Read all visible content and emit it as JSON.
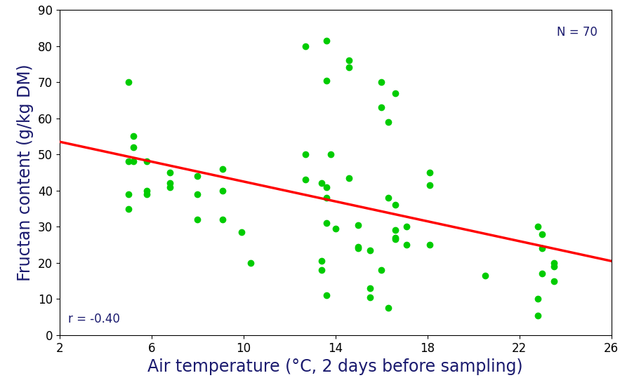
{
  "chart_data": {
    "type": "scatter",
    "x_label": "Air temperature (°C, 2 days before sampling)",
    "y_label": "Fructan content (g/kg DM)",
    "annotations": [
      "N = 70",
      "r = -0.40"
    ],
    "xlim": [
      2,
      26
    ],
    "xticks": [
      2,
      6,
      10,
      14,
      18,
      22,
      26
    ],
    "ylim": [
      0,
      90
    ],
    "yticks": [
      0,
      10,
      20,
      30,
      40,
      50,
      60,
      70,
      80,
      90
    ],
    "grid": false,
    "series": [
      {
        "type": "scatter",
        "color": "#00cc00",
        "marker": "circle",
        "x": [
          5.0,
          5.0,
          5.0,
          5.0,
          5.2,
          5.2,
          5.2,
          5.8,
          5.8,
          5.8,
          6.8,
          6.8,
          6.8,
          8.0,
          8.0,
          8.0,
          9.1,
          9.1,
          9.1,
          9.9,
          10.3,
          12.7,
          12.7,
          12.7,
          13.4,
          13.4,
          13.4,
          13.6,
          13.6,
          13.6,
          13.6,
          13.6,
          13.6,
          13.8,
          14.0,
          14.6,
          14.6,
          14.6,
          15.0,
          15.0,
          15.0,
          15.5,
          15.5,
          15.5,
          16.0,
          16.0,
          16.0,
          16.3,
          16.3,
          16.3,
          16.6,
          16.6,
          16.6,
          16.6,
          16.6,
          17.1,
          17.1,
          18.1,
          18.1,
          18.1,
          20.5,
          22.8,
          22.8,
          22.8,
          23.0,
          23.0,
          23.0,
          23.5,
          23.5,
          23.5
        ],
        "values": [
          70,
          39,
          35,
          48,
          55,
          52,
          48,
          48,
          40,
          39,
          45,
          42,
          41,
          44,
          39,
          32,
          46,
          40,
          32,
          28.5,
          20,
          80,
          50,
          43,
          42,
          20.5,
          18,
          81.5,
          70.5,
          41,
          38,
          31,
          11,
          50,
          29.5,
          76,
          74,
          43.5,
          30.5,
          24,
          24.5,
          23.5,
          13,
          10.5,
          70,
          63,
          18,
          59,
          38,
          7.5,
          67,
          36,
          29,
          27,
          26.5,
          30,
          25,
          45,
          41.5,
          25,
          16.5,
          30,
          10,
          5.5,
          28,
          24,
          17,
          20,
          19,
          15
        ]
      },
      {
        "type": "line",
        "color": "#ff0000",
        "line_style": "solid",
        "x": [
          2,
          26
        ],
        "values": [
          53.5,
          20.5
        ]
      }
    ]
  }
}
